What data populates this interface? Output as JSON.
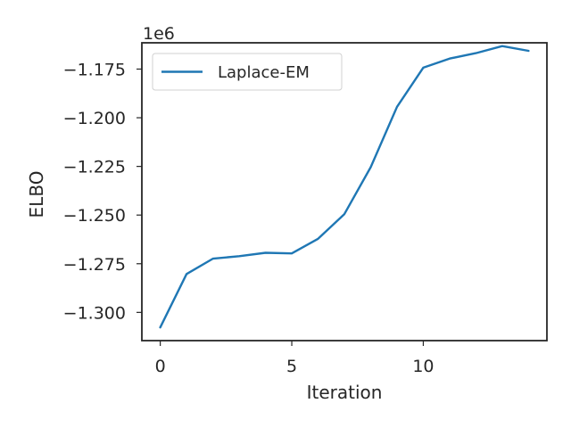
{
  "chart_data": {
    "type": "line",
    "xlabel": "Iteration",
    "ylabel": "ELBO",
    "y_offset_label": "1e6",
    "xlim": [
      -0.7,
      14.7
    ],
    "ylim": [
      -1.3145,
      -1.1615
    ],
    "x_ticks": [
      0,
      5,
      10
    ],
    "x_tick_labels": [
      "0",
      "5",
      "10"
    ],
    "y_ticks": [
      -1.3,
      -1.275,
      -1.25,
      -1.225,
      -1.2,
      -1.175
    ],
    "y_tick_labels": [
      "−1.300",
      "−1.275",
      "−1.250",
      "−1.225",
      "−1.200",
      "−1.175"
    ],
    "grid": false,
    "legend_position": "upper-left",
    "series": [
      {
        "name": "Laplace-EM",
        "color": "#1f77b4",
        "x": [
          0,
          1,
          2,
          3,
          4,
          5,
          6,
          7,
          8,
          9,
          10,
          11,
          12,
          13,
          14
        ],
        "y": [
          -1.3077,
          -1.2803,
          -1.2724,
          -1.2711,
          -1.2694,
          -1.2697,
          -1.2622,
          -1.2495,
          -1.2254,
          -1.1944,
          -1.1743,
          -1.1696,
          -1.1668,
          -1.1632,
          -1.1656
        ]
      }
    ]
  }
}
